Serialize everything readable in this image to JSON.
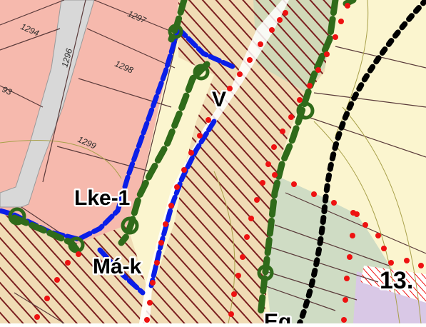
{
  "parcels": {
    "p1294": "1294",
    "p1297": "1297",
    "p1296": "1296",
    "p1298": "1298",
    "p93": "93",
    "p1299": "1299"
  },
  "zones": {
    "lke1": "Lke-1",
    "mak": "Má-k",
    "v": "V",
    "eg": "Eg",
    "n13": "13."
  },
  "colors": {
    "pink_zone": "#f6b9ad",
    "cream_zone": "#fbf5cf",
    "green_zone": "#cfdcc4",
    "hatch_dark": "#7b1f1f",
    "dark_green_boundary": "#2f6b1a",
    "blue_boundary": "#0a1ee8",
    "red_dots": "#ee1111",
    "black_dots": "#000000",
    "road_grey": "#dcdcdc",
    "purple_zone": "#d9c8e6"
  }
}
